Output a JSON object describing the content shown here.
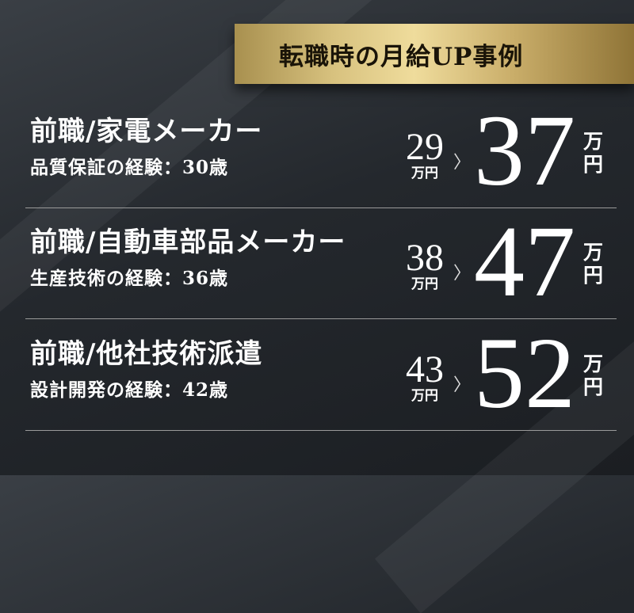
{
  "header": {
    "title": "転職時の月給UP事例"
  },
  "colors": {
    "background": "#24282d",
    "banner_gold": "#d8c27f",
    "text": "#ffffff"
  },
  "cases": [
    {
      "title": "前職/家電メーカー",
      "subtitle": "品質保証の経験：30歳",
      "before": "29",
      "before_unit": "万円",
      "arrow_icon": "chevron-right-icon",
      "after": "37",
      "after_unit_top": "万",
      "after_unit_bottom": "円"
    },
    {
      "title": "前職/自動車部品メーカー",
      "subtitle": "生産技術の経験：36歳",
      "before": "38",
      "before_unit": "万円",
      "arrow_icon": "chevron-right-icon",
      "after": "47",
      "after_unit_top": "万",
      "after_unit_bottom": "円"
    },
    {
      "title": "前職/他社技術派遣",
      "subtitle": "設計開発の経験：42歳",
      "before": "43",
      "before_unit": "万円",
      "arrow_icon": "chevron-right-icon",
      "after": "52",
      "after_unit_top": "万",
      "after_unit_bottom": "円"
    }
  ]
}
